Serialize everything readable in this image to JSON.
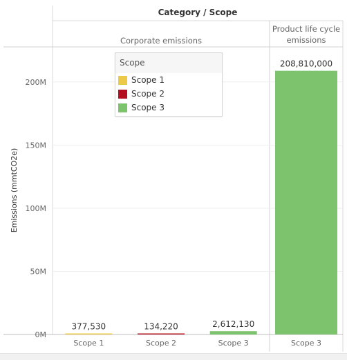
{
  "chart_data": {
    "type": "bar",
    "title": "Category / Scope",
    "ylabel": "Emissions (mmtCO2e)",
    "ylim": [
      0,
      225000000
    ],
    "yticks": [
      0,
      50000000,
      100000000,
      150000000,
      200000000
    ],
    "ytick_labels": [
      "0M",
      "50M",
      "100M",
      "150M",
      "200M"
    ],
    "grid": true,
    "groups": [
      {
        "name_lines": [
          "Corporate emissions"
        ],
        "categories": [
          "Scope 1",
          "Scope 2",
          "Scope 3"
        ],
        "values": [
          377530,
          134220,
          2612130
        ],
        "labels": [
          "377,530",
          "134,220",
          "2,612,130"
        ],
        "series": [
          "Scope 1",
          "Scope 2",
          "Scope 3"
        ]
      },
      {
        "name_lines": [
          "Product life cycle",
          "emissions"
        ],
        "categories": [
          "Scope 3"
        ],
        "values": [
          208810000
        ],
        "labels": [
          "208,810,000"
        ],
        "series": [
          "Scope 3"
        ]
      }
    ],
    "legend": {
      "title": "Scope",
      "placement": "top-center",
      "items": [
        {
          "label": "Scope 1",
          "color": "#EDC948"
        },
        {
          "label": "Scope 2",
          "color": "#B30F1F"
        },
        {
          "label": "Scope 3",
          "color": "#7DC36E"
        }
      ]
    }
  }
}
